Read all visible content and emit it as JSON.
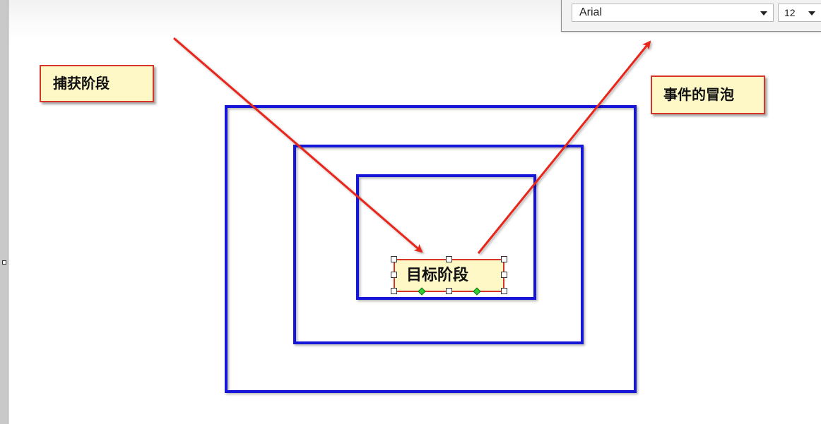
{
  "toolbar": {
    "font_family": "Arial",
    "font_size": "12"
  },
  "labels": {
    "capture": "捕获阶段",
    "bubble": "事件的冒泡",
    "target": "目标阶段"
  },
  "colors": {
    "frame": "#1414d8",
    "arrow": "#e8261c",
    "label_fill": "#fdf8c6",
    "label_border": "#d8352a"
  },
  "icons": {
    "dropdown": "chevron-down-icon",
    "handle": "resize-handle-icon",
    "connection": "connection-point-icon"
  }
}
